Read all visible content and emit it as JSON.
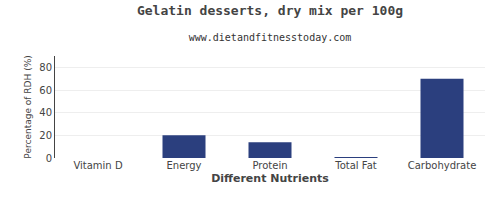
{
  "chart_data": {
    "type": "bar",
    "title": "Gelatin desserts, dry mix per 100g",
    "subtitle": "www.dietandfitnesstoday.com",
    "xlabel": "Different Nutrients",
    "ylabel": "Percentage of RDH (%)",
    "categories": [
      "Vitamin D",
      "Energy",
      "Protein",
      "Total Fat",
      "Carbohydrate"
    ],
    "values": [
      0,
      20,
      14,
      0.5,
      70
    ],
    "color": "#2b3f7e",
    "ylim": [
      0,
      90
    ],
    "yticks": [
      0,
      20,
      40,
      60,
      80
    ],
    "grid": true
  }
}
